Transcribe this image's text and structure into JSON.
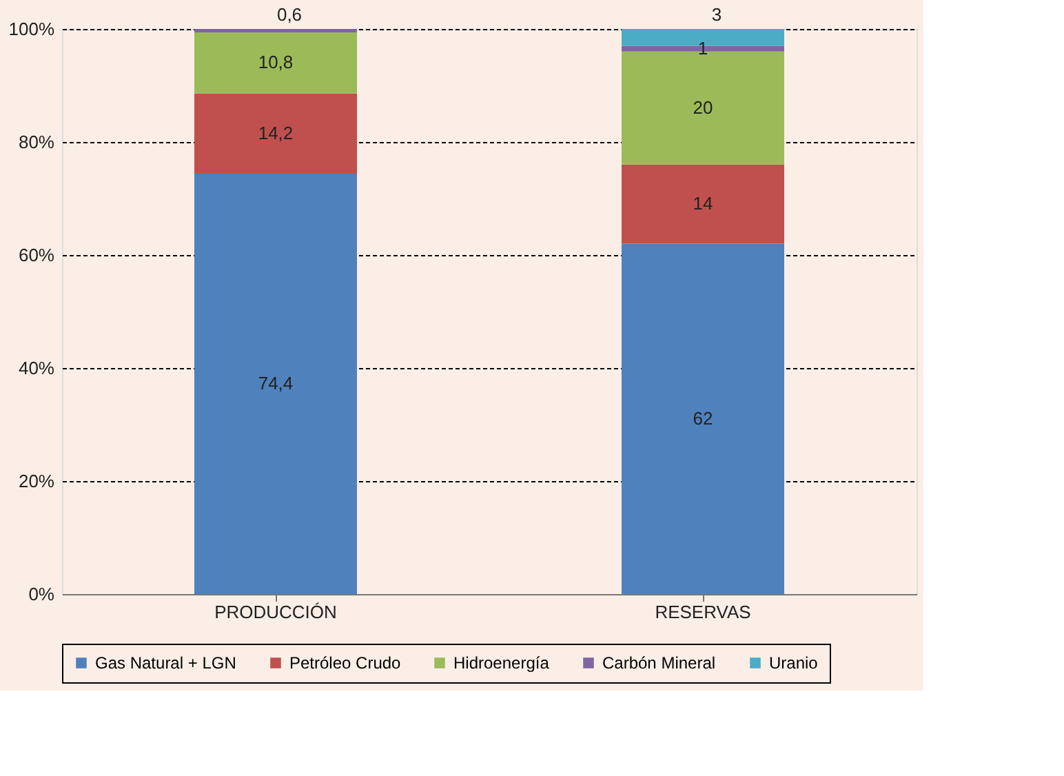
{
  "chart_data": {
    "type": "bar",
    "stacked": true,
    "categories": [
      "PRODUCCIÓN",
      "RESERVAS"
    ],
    "series": [
      {
        "name": "Gas Natural + LGN",
        "color": "#4f81bd",
        "values": [
          74.4,
          62
        ],
        "value_labels": [
          "74,4",
          "62"
        ]
      },
      {
        "name": "Petróleo Crudo",
        "color": "#c0504d",
        "values": [
          14.2,
          14
        ],
        "value_labels": [
          "14,2",
          "14"
        ]
      },
      {
        "name": "Hidroenergía",
        "color": "#9bbb59",
        "values": [
          10.8,
          20
        ],
        "value_labels": [
          "10,8",
          "20"
        ]
      },
      {
        "name": "Carbón Mineral",
        "color": "#8064a2",
        "values": [
          0.6,
          1
        ],
        "value_labels": [
          "0,6",
          "1"
        ]
      },
      {
        "name": "Uranio",
        "color": "#4bacc6",
        "values": [
          null,
          3
        ],
        "value_labels": [
          null,
          "3"
        ]
      }
    ],
    "ylim": [
      0,
      100
    ],
    "yticks": [
      {
        "value": 0,
        "label": "0%"
      },
      {
        "value": 20,
        "label": "20%"
      },
      {
        "value": 40,
        "label": "40%"
      },
      {
        "value": 60,
        "label": "60%"
      },
      {
        "value": 80,
        "label": "80%"
      },
      {
        "value": 100,
        "label": "100%"
      }
    ],
    "grid": "y",
    "legend": "bottom"
  }
}
